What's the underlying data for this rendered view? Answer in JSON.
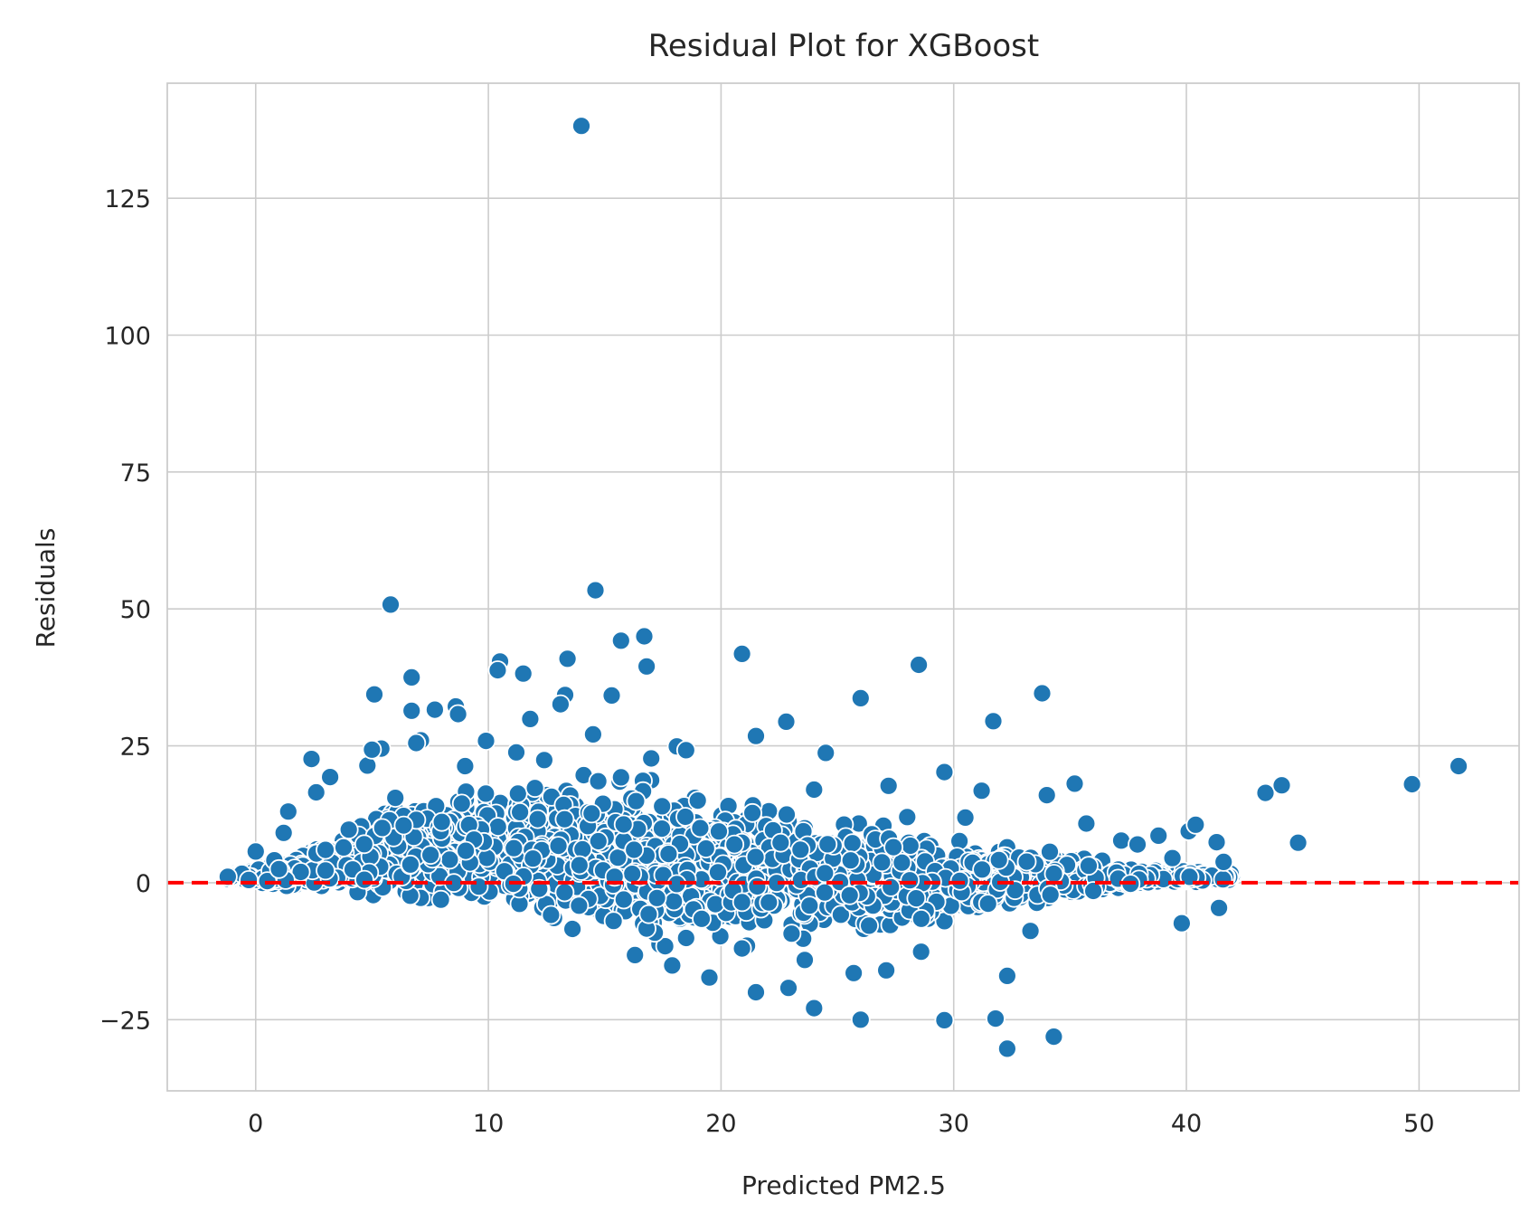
{
  "chart_data": {
    "type": "scatter",
    "title": "Residual Plot for XGBoost",
    "xlabel": "Predicted PM2.5",
    "ylabel": "Residuals",
    "xlim": [
      -3.8,
      54.3
    ],
    "ylim": [
      -38,
      146
    ],
    "xticks": [
      0,
      10,
      20,
      30,
      40,
      50
    ],
    "yticks": [
      -25,
      0,
      25,
      50,
      75,
      100,
      125
    ],
    "ytick_labels": [
      "−25",
      "0",
      "25",
      "50",
      "75",
      "100",
      "125"
    ],
    "grid": true,
    "reference_line": {
      "y": 0,
      "style": "dashed",
      "color": "#ff0000"
    },
    "marker_color": "#1f77b4",
    "series": [
      {
        "x": [
          14.0,
          14.6,
          5.8,
          16.7,
          15.7,
          16.8,
          13.4,
          10.5,
          10.4,
          11.5,
          6.7,
          5.1,
          8.6,
          7.7,
          13.3,
          13.1,
          15.3,
          8.7,
          6.7,
          11.8,
          7.1,
          5.4,
          2.4,
          2.6,
          3.2,
          4.8,
          5.0,
          6.9,
          9.0,
          9.9,
          11.2,
          12.4,
          14.5,
          17.0,
          18.1,
          18.5,
          20.9,
          21.5,
          22.8,
          26.0,
          28.5,
          31.7,
          33.8,
          24.5,
          27.2,
          29.6,
          31.2,
          34.0,
          35.2,
          35.7,
          37.2,
          38.8,
          39.4,
          40.1,
          40.4,
          41.3,
          41.6,
          43.4,
          44.1,
          44.8,
          49.7,
          51.7,
          39.8,
          41.4,
          33.3,
          32.3,
          31.8,
          29.6,
          26.0,
          32.3,
          34.3,
          24.0,
          25.7,
          21.5,
          22.9,
          19.5,
          17.9,
          16.3,
          27.1,
          20.9,
          23.6,
          28.6,
          36.0,
          37.6,
          0.0,
          1.4,
          1.2,
          0.8,
          -1.2,
          -0.3,
          0.5,
          1.0,
          3.0,
          4.0,
          6.0,
          8.0,
          12.0,
          19.0,
          24.0,
          28.0,
          30.5,
          35.8,
          37.9
        ],
        "y": [
          138.2,
          53.4,
          50.8,
          45.0,
          44.2,
          39.5,
          40.9,
          40.4,
          38.8,
          38.2,
          37.5,
          34.4,
          32.2,
          31.6,
          34.3,
          32.6,
          34.2,
          30.8,
          31.4,
          29.9,
          26.0,
          24.5,
          22.6,
          16.5,
          19.3,
          21.4,
          24.3,
          25.5,
          21.3,
          25.9,
          23.8,
          22.4,
          27.1,
          22.7,
          24.9,
          24.2,
          41.8,
          26.8,
          29.4,
          33.7,
          39.8,
          29.5,
          34.6,
          23.7,
          17.7,
          20.2,
          16.8,
          16.0,
          18.1,
          10.8,
          7.7,
          8.6,
          4.5,
          9.4,
          10.6,
          7.4,
          3.8,
          16.4,
          17.8,
          7.3,
          18.0,
          21.3,
          -7.4,
          -4.6,
          -8.8,
          -17.0,
          -24.8,
          -25.1,
          -25.0,
          -30.3,
          -28.1,
          -22.9,
          -16.5,
          -20.0,
          -19.2,
          -17.3,
          -15.1,
          -13.2,
          -16.0,
          -12.0,
          -14.1,
          -12.6,
          -1.5,
          -0.2,
          5.7,
          13.0,
          9.1,
          4.1,
          1.1,
          0.5,
          0.3,
          2.5,
          6.0,
          9.7,
          15.5,
          11.1,
          17.3,
          15.0,
          17.0,
          12.0,
          11.9,
          3.1,
          7.0
        ]
      }
    ],
    "dense_band": {
      "description_free": true,
      "x_range": [
        -1.2,
        42
      ],
      "upper_envelope": [
        [
          -1.2,
          1.5
        ],
        [
          1,
          4
        ],
        [
          3,
          8
        ],
        [
          5,
          14
        ],
        [
          7,
          17
        ],
        [
          10,
          19
        ],
        [
          13,
          22
        ],
        [
          16,
          22
        ],
        [
          20,
          18
        ],
        [
          24,
          16
        ],
        [
          28,
          12
        ],
        [
          31,
          9
        ],
        [
          35,
          6
        ],
        [
          38,
          3
        ],
        [
          41,
          2
        ]
      ],
      "lower_envelope": [
        [
          -1.2,
          0.5
        ],
        [
          1,
          -1
        ],
        [
          3,
          -2
        ],
        [
          5,
          -4
        ],
        [
          7,
          -6
        ],
        [
          10,
          -8
        ],
        [
          13,
          -11
        ],
        [
          16,
          -14
        ],
        [
          20,
          -14
        ],
        [
          24,
          -12
        ],
        [
          28,
          -11
        ],
        [
          31,
          -7
        ],
        [
          35,
          -3
        ],
        [
          38,
          -1
        ],
        [
          41,
          0
        ]
      ]
    }
  }
}
